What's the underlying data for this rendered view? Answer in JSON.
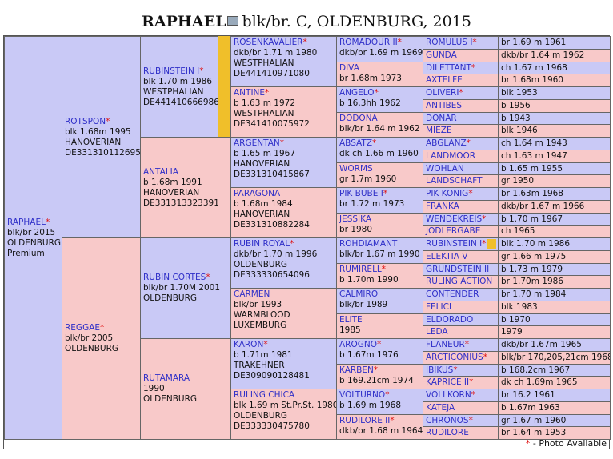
{
  "title": {
    "name": "RAPHAEL",
    "info": "blk/br. C, OLDENBURG, 2015"
  },
  "pedigree": {
    "generations": [
      [
        {
          "name": "RAPHAEL",
          "star": "*",
          "details": [
            "blk/br 2015",
            "OLDENBURG",
            "Premium"
          ]
        }
      ],
      [
        {
          "name": "ROTSPON",
          "star": "*",
          "details": [
            "blk 1.68m 1995",
            "HANOVERIAN",
            "DE331310112695"
          ]
        },
        {
          "name": "REGGAE",
          "star": "*",
          "details": [
            "blk/br 2005",
            "OLDENBURG"
          ]
        }
      ],
      [
        {
          "name": "RUBINSTEIN I",
          "star": "*",
          "details": [
            "blk 1.70 m 1986",
            "WESTPHALIAN",
            "DE441410666986"
          ]
        },
        {
          "name": "ANTALIA",
          "details": [
            "b 1.68m 1991",
            "HANOVERIAN",
            "DE331313323391"
          ]
        },
        {
          "name": "RUBIN CORTES",
          "star": "*",
          "details": [
            "blk/br 1.70M 2001",
            "OLDENBURG"
          ]
        },
        {
          "name": "RUTAMARA",
          "details": [
            "1990",
            "OLDENBURG"
          ]
        }
      ],
      [
        {
          "name": "ROSENKAVALIER",
          "star": "*",
          "details": [
            "dkb/br 1.71 m 1980",
            "WESTPHALIAN",
            "DE441410971080"
          ]
        },
        {
          "name": "ANTINE",
          "star": "*",
          "details": [
            "b 1.63 m 1972",
            "WESTPHALIAN",
            "DE341410075972"
          ]
        },
        {
          "name": "ARGENTAN",
          "star": "*",
          "details": [
            "b 1.65 m 1967",
            "HANOVERIAN",
            "DE331310415867"
          ]
        },
        {
          "name": "PARAGONA",
          "details": [
            "b 1.68m 1984",
            "HANOVERIAN",
            "DE331310882284"
          ]
        },
        {
          "name": "RUBIN ROYAL",
          "star": "*",
          "details": [
            "dkb/br 1.70 m 1996",
            "OLDENBURG",
            "DE333330654096"
          ]
        },
        {
          "name": "CARMEN",
          "details": [
            "blk/br 1993",
            "WARMBLOOD",
            "LUXEMBURG"
          ]
        },
        {
          "name": "KARON",
          "star": "*",
          "details": [
            "b 1.71m 1981",
            "TRAKEHNER",
            "DE309090128481"
          ]
        },
        {
          "name": "RULING CHICA",
          "details": [
            "blk 1.69 m St.Pr.St. 1980",
            "OLDENBURG",
            "DE333330475780"
          ]
        }
      ],
      [
        {
          "name": "ROMADOUR II",
          "star": "*",
          "details": [
            "dkb/br 1.69 m 1969"
          ]
        },
        {
          "name": "DIVA",
          "details": [
            "br 1.68m 1973"
          ]
        },
        {
          "name": "ANGELO",
          "star": "*",
          "details": [
            "b 16.3hh 1962"
          ]
        },
        {
          "name": "DODONA",
          "details": [
            "blk/br 1.64 m 1962"
          ]
        },
        {
          "name": "ABSATZ",
          "star": "*",
          "details": [
            "dk ch 1.66 m 1960"
          ]
        },
        {
          "name": "WORMS",
          "details": [
            "gr 1.7m 1960"
          ]
        },
        {
          "name": "PIK BUBE I",
          "star": "*",
          "details": [
            "br 1.72 m 1973"
          ]
        },
        {
          "name": "JESSIKA",
          "details": [
            "br 1980"
          ]
        },
        {
          "name": "ROHDIAMANT",
          "details": [
            "blk/br 1.67 m 1990"
          ]
        },
        {
          "name": "RUMIRELL",
          "star": "*",
          "details": [
            "b 1.70m 1990"
          ]
        },
        {
          "name": "CALMIRO",
          "details": [
            "blk/br 1989"
          ]
        },
        {
          "name": "ELITE",
          "details": [
            "1985"
          ]
        },
        {
          "name": "AROGNO",
          "star": "*",
          "details": [
            "b 1.67m 1976"
          ]
        },
        {
          "name": "KARBEN",
          "star": "*",
          "details": [
            "b 169.21cm 1974"
          ]
        },
        {
          "name": "VOLTURNO",
          "star": "*",
          "details": [
            "b 1.69 m 1968"
          ]
        },
        {
          "name": "RUDILORE II",
          "star": "*",
          "details": [
            "dkb/br 1.68 m 1964"
          ]
        }
      ],
      [
        {
          "name": "ROMULUS I",
          "star": "*",
          "details": [
            "br 1.69 m 1961"
          ]
        },
        {
          "name": "GUNDA",
          "details": [
            "dkb/br 1.64 m 1962"
          ]
        },
        {
          "name": "DILETTANT",
          "star": "*",
          "details": [
            "ch 1.67 m 1968"
          ]
        },
        {
          "name": "AXTELFE",
          "details": [
            "br 1.68m 1960"
          ]
        },
        {
          "name": "OLIVERI",
          "star": "*",
          "details": [
            "blk 1953"
          ]
        },
        {
          "name": "ANTIBES",
          "details": [
            "b 1956"
          ]
        },
        {
          "name": "DONAR",
          "details": [
            "b 1943"
          ]
        },
        {
          "name": "MIEZE",
          "details": [
            "blk 1946"
          ]
        },
        {
          "name": "ABGLANZ",
          "star": "*",
          "details": [
            "ch 1.64 m 1943"
          ]
        },
        {
          "name": "LANDMOOR",
          "details": [
            "ch 1.63 m 1947"
          ]
        },
        {
          "name": "WOHLAN",
          "details": [
            "b 1.65 m 1955"
          ]
        },
        {
          "name": "LANDSCHAFT",
          "details": [
            "gr 1950"
          ]
        },
        {
          "name": "PIK KONIG",
          "star": "*",
          "details": [
            "br 1.63m 1968"
          ]
        },
        {
          "name": "FRANKA",
          "details": [
            "dkb/br 1.67 m 1966"
          ]
        },
        {
          "name": "WENDEKREIS",
          "star": "*",
          "details": [
            "b 1.70 m 1967"
          ]
        },
        {
          "name": "JODLERGABE",
          "details": [
            "ch 1965"
          ]
        },
        {
          "name": "RUBINSTEIN I",
          "star": "*",
          "details": [
            "blk 1.70 m 1986"
          ]
        },
        {
          "name": "ELEKTIA V",
          "details": [
            "gr 1.66 m 1975"
          ]
        },
        {
          "name": "GRUNDSTEIN II",
          "details": [
            "b 1.73 m 1979"
          ]
        },
        {
          "name": "RULING ACTION",
          "details": [
            "br 1.70m 1986"
          ]
        },
        {
          "name": "CONTENDER",
          "details": [
            "br 1.70 m 1984"
          ]
        },
        {
          "name": "FELICI",
          "details": [
            "blk 1983"
          ]
        },
        {
          "name": "ELDORADO",
          "details": [
            "b 1970"
          ]
        },
        {
          "name": "LEDA",
          "details": [
            "1979"
          ]
        },
        {
          "name": "FLANEUR",
          "star": "*",
          "details": [
            "dkb/br 1.67m 1965"
          ]
        },
        {
          "name": "ARCTICONIUS",
          "star": "*",
          "details": [
            "blk/br 170,205,21cm 1968"
          ]
        },
        {
          "name": "IBIKUS",
          "star": "*",
          "details": [
            "b 168.2cm 1967"
          ]
        },
        {
          "name": "KAPRICE II",
          "star": "*",
          "details": [
            "dk ch 1.69m 1965"
          ]
        },
        {
          "name": "VOLLKORN",
          "star": "*",
          "details": [
            "br 16.2 1961"
          ]
        },
        {
          "name": "KATEJA",
          "details": [
            "b 1.67m 1963"
          ]
        },
        {
          "name": "CHRONOS",
          "star": "*",
          "details": [
            "gr 1.67 m 1960"
          ]
        },
        {
          "name": "RUDILORE",
          "details": [
            "br 1.64 m 1953"
          ]
        }
      ]
    ]
  },
  "footer": {
    "star": "*",
    "text": "- Photo Available"
  }
}
